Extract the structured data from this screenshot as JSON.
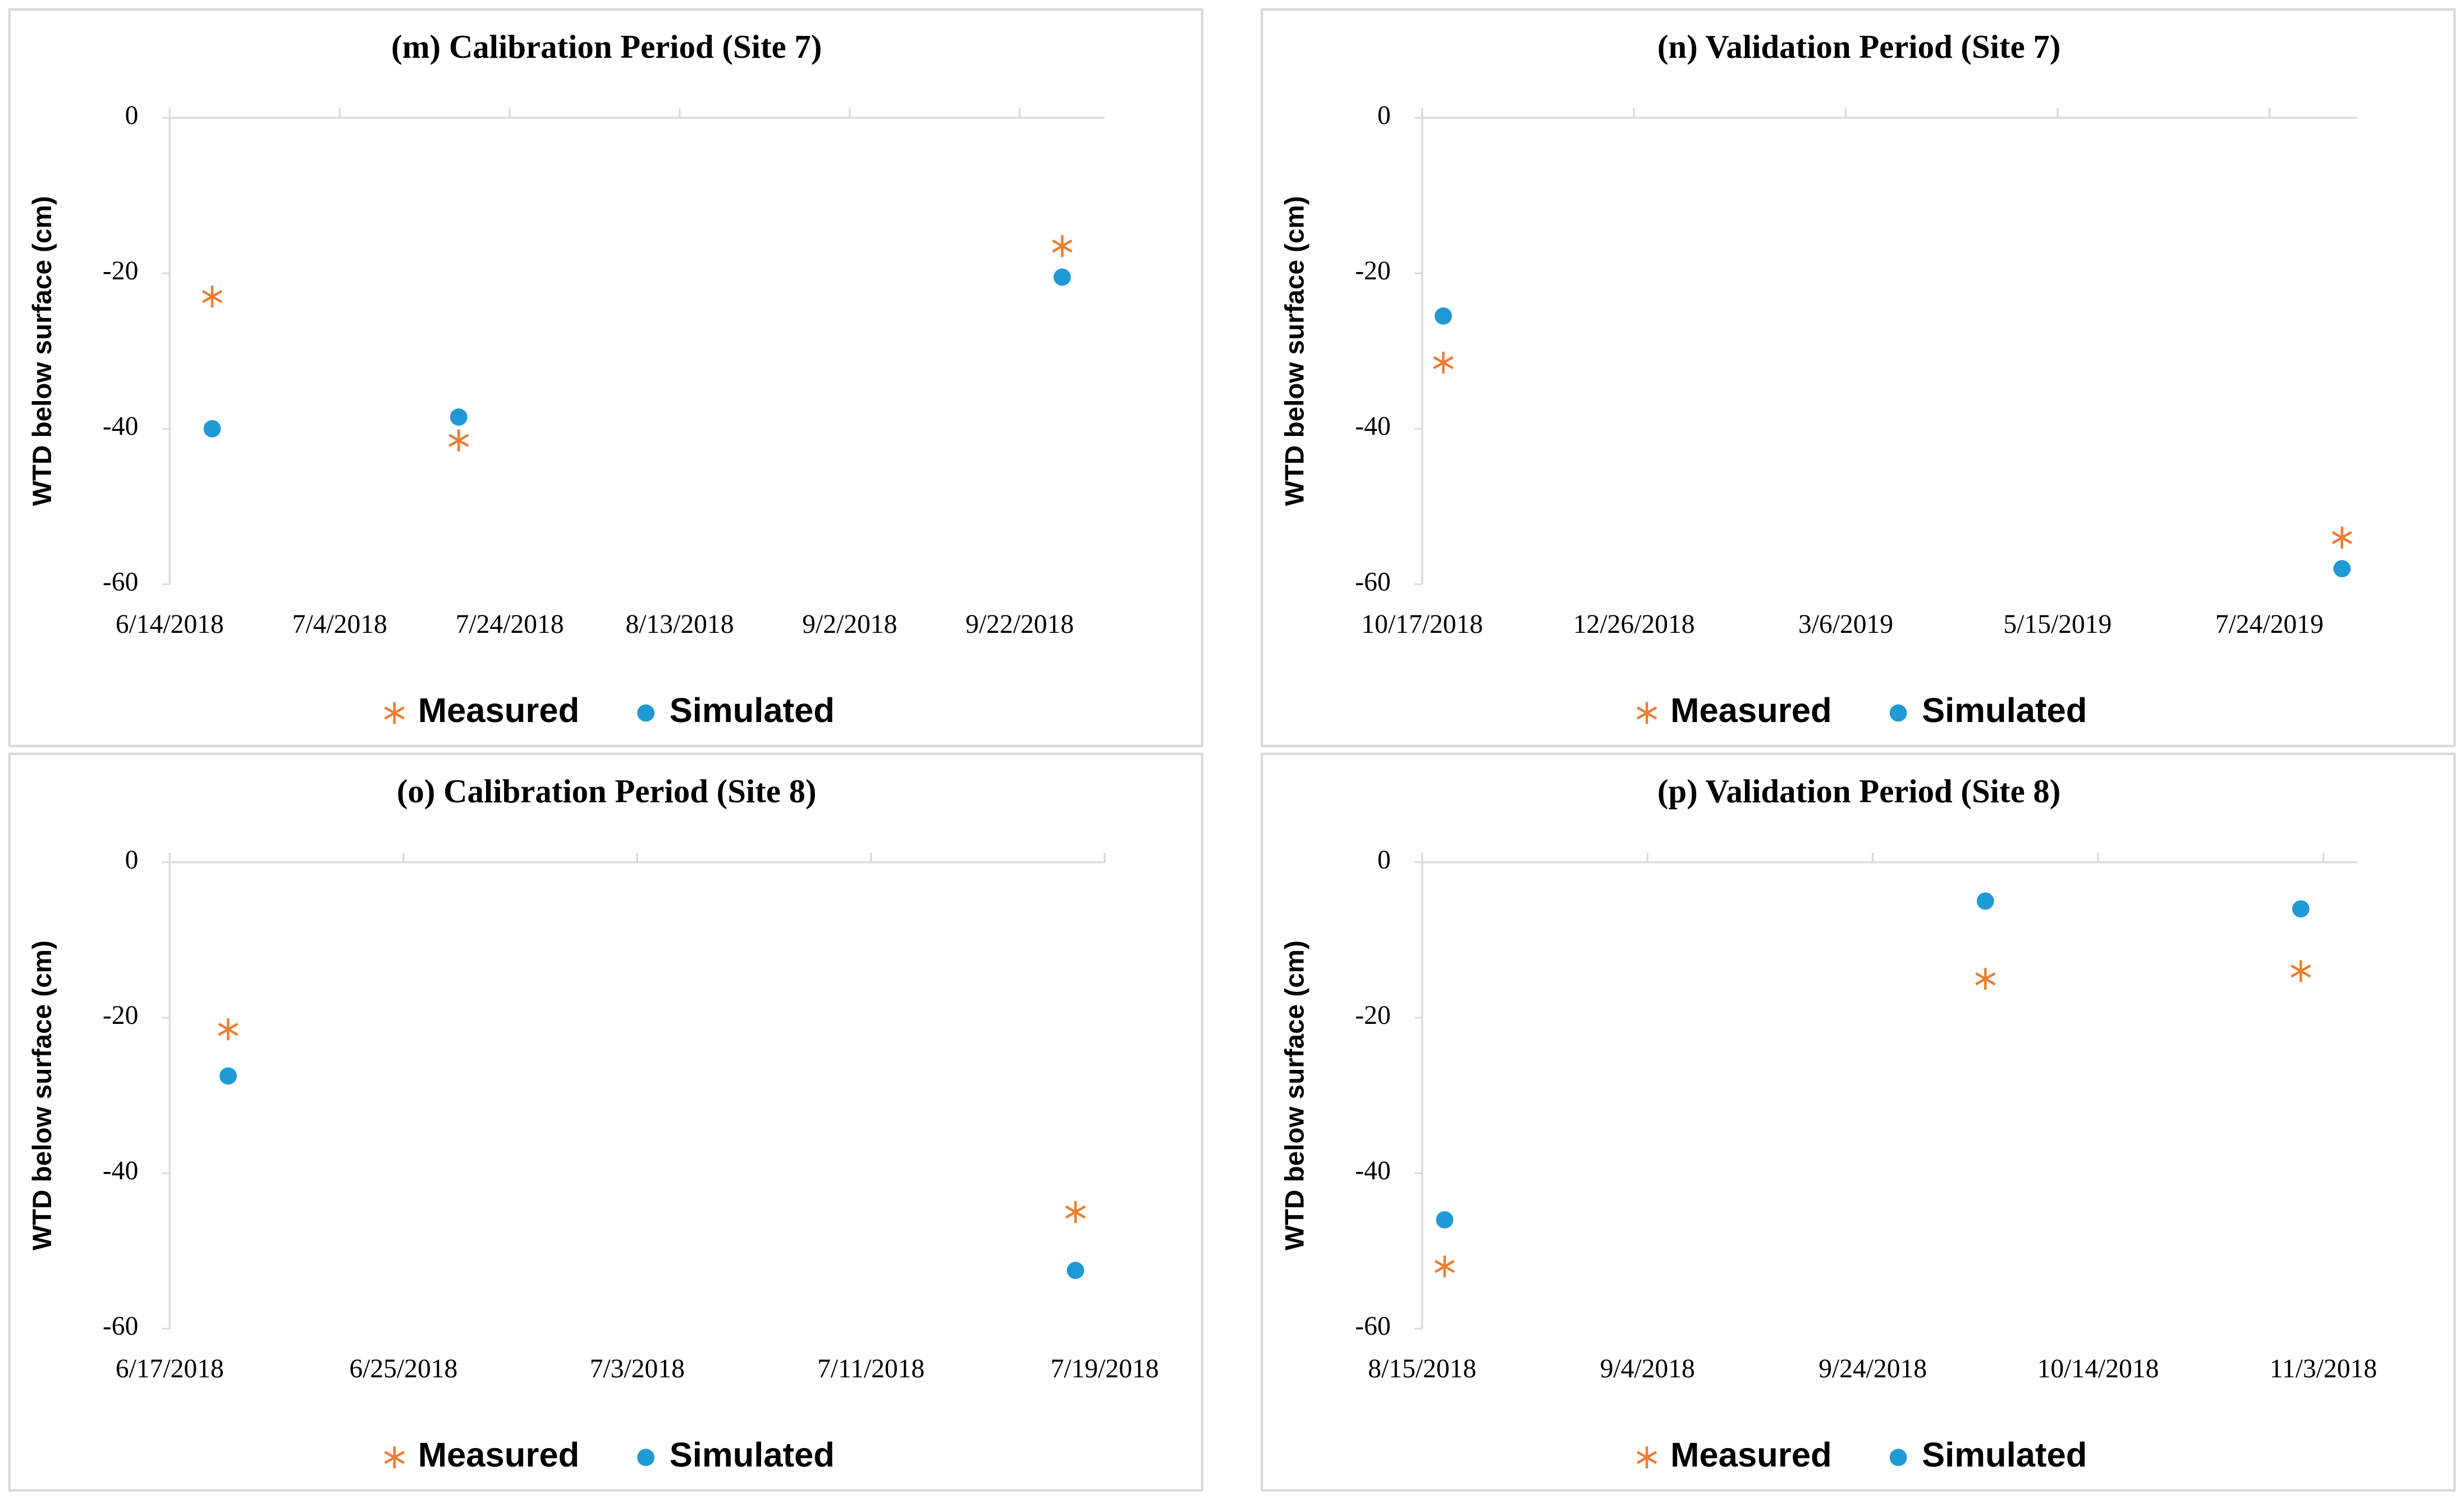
{
  "chart_data": [
    {
      "type": "scatter",
      "title": "(m) Calibration Period (Site 7)",
      "y_label": "WTD below surface (cm)",
      "x": [
        "6/19/2018",
        "7/18/2018",
        "9/27/2018"
      ],
      "series": [
        {
          "name": "Measured",
          "color": "#ed7d31",
          "marker": "asterisk",
          "values": [
            -23,
            -41.5,
            -16.5
          ]
        },
        {
          "name": "Simulated",
          "color": "#1f9ad6",
          "marker": "circle",
          "values": [
            -40,
            -38.5,
            -20.5
          ]
        }
      ],
      "xlim": [
        "6/14/2018",
        "10/2/2018"
      ],
      "xticks": [
        "6/14/2018",
        "7/4/2018",
        "7/24/2018",
        "8/13/2018",
        "9/2/2018",
        "9/22/2018"
      ],
      "ylim": [
        -60,
        0
      ],
      "yticks": [
        -60,
        -40,
        -20,
        0
      ]
    },
    {
      "type": "scatter",
      "title": "(n) Validation Period (Site 7)",
      "y_label": "WTD below surface (cm)",
      "x": [
        "10/24/2018",
        "8/17/2019"
      ],
      "series": [
        {
          "name": "Measured",
          "color": "#ed7d31",
          "marker": "asterisk",
          "values": [
            -31.5,
            -54
          ]
        },
        {
          "name": "Simulated",
          "color": "#1f9ad6",
          "marker": "circle",
          "values": [
            -25.5,
            -58
          ]
        }
      ],
      "xlim": [
        "10/17/2018",
        "8/22/2019"
      ],
      "xticks": [
        "10/17/2018",
        "12/26/2018",
        "3/6/2019",
        "5/15/2019",
        "7/24/2019"
      ],
      "ylim": [
        -60,
        0
      ],
      "yticks": [
        -60,
        -40,
        -20,
        0
      ]
    },
    {
      "type": "scatter",
      "title": "(o) Calibration Period (Site 8)",
      "y_label": "WTD below surface (cm)",
      "x": [
        "6/19/2018",
        "7/18/2018"
      ],
      "series": [
        {
          "name": "Measured",
          "color": "#ed7d31",
          "marker": "asterisk",
          "values": [
            -21.5,
            -45
          ]
        },
        {
          "name": "Simulated",
          "color": "#1f9ad6",
          "marker": "circle",
          "values": [
            -27.5,
            -52.5
          ]
        }
      ],
      "xlim": [
        "6/17/2018",
        "7/19/2018"
      ],
      "xticks": [
        "6/17/2018",
        "6/25/2018",
        "7/3/2018",
        "7/11/2018",
        "7/19/2018"
      ],
      "ylim": [
        -60,
        0
      ],
      "yticks": [
        -60,
        -40,
        -20,
        0
      ]
    },
    {
      "type": "scatter",
      "title": "(p) Validation Period (Site 8)",
      "y_label": "WTD below surface (cm)",
      "x": [
        "8/17/2018",
        "10/4/2018",
        "11/1/2018"
      ],
      "series": [
        {
          "name": "Measured",
          "color": "#ed7d31",
          "marker": "asterisk",
          "values": [
            -52,
            -15,
            -14
          ]
        },
        {
          "name": "Simulated",
          "color": "#1f9ad6",
          "marker": "circle",
          "values": [
            -46,
            -5,
            -6
          ]
        }
      ],
      "xlim": [
        "8/15/2018",
        "11/6/2018"
      ],
      "xticks": [
        "8/15/2018",
        "9/4/2018",
        "9/24/2018",
        "10/14/2018",
        "11/3/2018"
      ],
      "ylim": [
        -60,
        0
      ],
      "yticks": [
        -60,
        -40,
        -20,
        0
      ]
    }
  ]
}
